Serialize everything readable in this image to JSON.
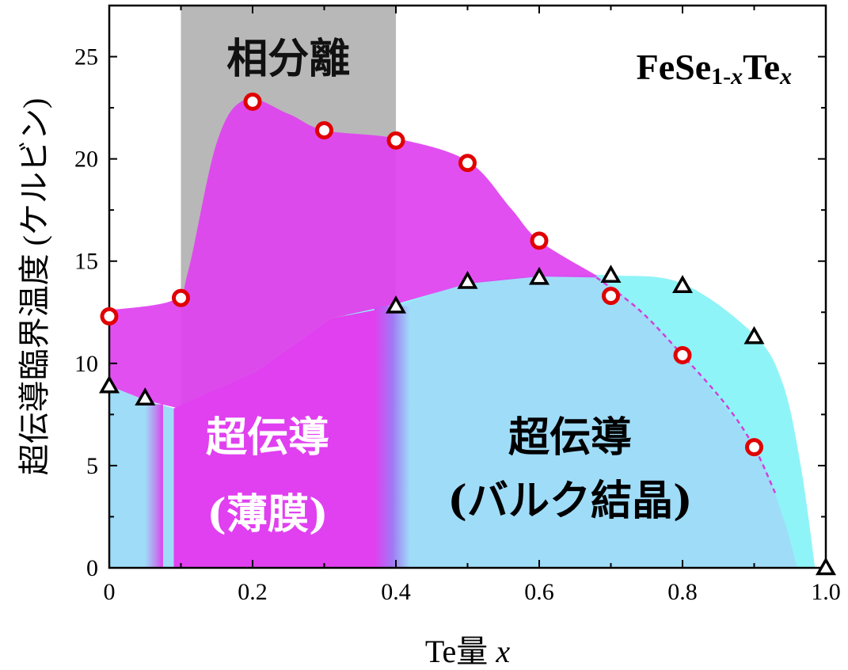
{
  "chart_data": {
    "type": "scatter",
    "title": "FeSe1-xTex",
    "formula": {
      "base": "FeSe",
      "sub1": "1-",
      "subvar": "x",
      "mid": "Te",
      "sub2": "x"
    },
    "xlabel": {
      "text": "Te量 ",
      "var": "x"
    },
    "ylabel": "超伝導臨界温度 (ケルビン)",
    "xlim": [
      0,
      1.0
    ],
    "ylim": [
      0,
      27.5
    ],
    "xticks": [
      "0",
      "0.2",
      "0.4",
      "0.6",
      "0.8",
      "1.0"
    ],
    "yticks": [
      "0",
      "5",
      "10",
      "15",
      "20",
      "25"
    ],
    "series": [
      {
        "marker": "circle",
        "color": "#e00000",
        "points": [
          [
            0,
            12.3
          ],
          [
            0.1,
            13.2
          ],
          [
            0.2,
            22.8
          ],
          [
            0.3,
            21.4
          ],
          [
            0.4,
            20.9
          ],
          [
            0.5,
            19.8
          ],
          [
            0.6,
            16.0
          ],
          [
            0.7,
            13.3
          ],
          [
            0.8,
            10.4
          ],
          [
            0.9,
            5.9
          ]
        ]
      },
      {
        "marker": "triangle",
        "color": "#000000",
        "points": [
          [
            0,
            8.9
          ],
          [
            0.05,
            8.3
          ],
          [
            0.4,
            12.8
          ],
          [
            0.5,
            14.0
          ],
          [
            0.6,
            14.2
          ],
          [
            0.7,
            14.3
          ],
          [
            0.8,
            13.8
          ],
          [
            0.9,
            11.3
          ],
          [
            1.0,
            0
          ]
        ]
      }
    ],
    "regions": {
      "phase_separation": {
        "x_range": [
          0.1,
          0.4
        ],
        "label": "相分離",
        "color": "#b8b8b8"
      },
      "thin_film": {
        "label_line1": "超伝導",
        "label_line2": "(薄膜)",
        "color": "#e040f0"
      },
      "bulk": {
        "label_line1": "超伝導",
        "label_line2": "(バルク結晶)",
        "color": "#9fdcf8",
        "accent": "#8ff4f8"
      }
    },
    "grid": false,
    "legend": "none"
  }
}
